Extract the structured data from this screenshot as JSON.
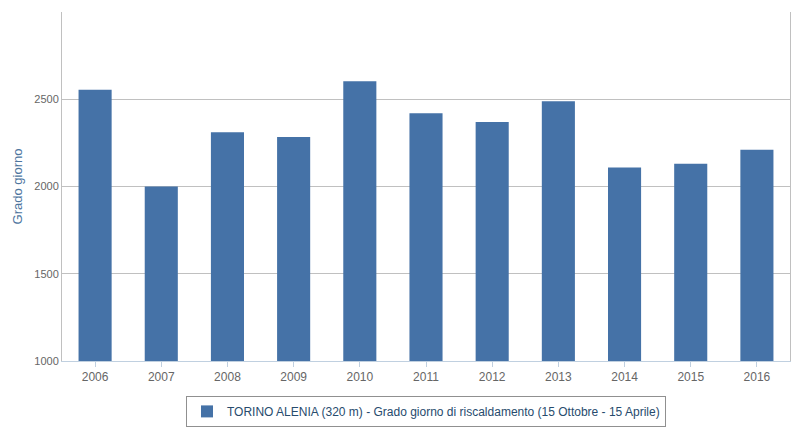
{
  "chart_data": {
    "type": "bar",
    "y_label": "Grado giorno",
    "categories": [
      "2006",
      "2007",
      "2008",
      "2009",
      "2010",
      "2011",
      "2012",
      "2013",
      "2014",
      "2015",
      "2016"
    ],
    "series": [
      {
        "name": "TORINO ALENIA (320 m) - Grado giorno di riscaldamento (15 Ottobre - 15 Aprile)",
        "color": "#4572a7",
        "values": [
          2555,
          2000,
          2311,
          2283,
          2603,
          2420,
          2369,
          2489,
          2109,
          2131,
          2211
        ]
      }
    ],
    "ylim": [
      1000,
      3000
    ],
    "yticks": [
      1000,
      1500,
      2000,
      2500
    ],
    "grid": true,
    "legend": "bottom"
  }
}
